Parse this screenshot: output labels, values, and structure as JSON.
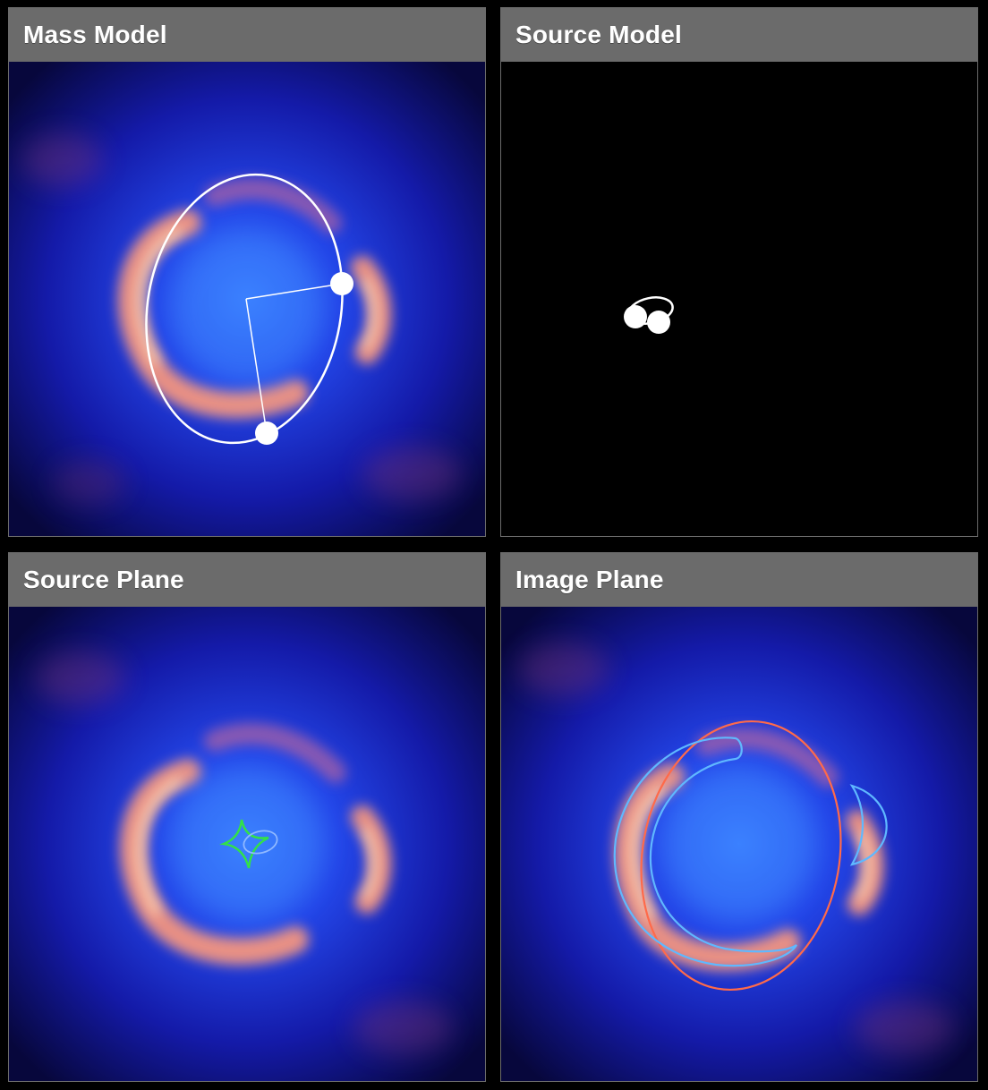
{
  "panels": {
    "mass_model": {
      "title": "Mass Model"
    },
    "source_model": {
      "title": "Source Model"
    },
    "source_plane": {
      "title": "Source Plane"
    },
    "image_plane": {
      "title": "Image Plane"
    }
  },
  "colors": {
    "header_bg": "#6b6b6b",
    "panel_border": "#6a6a6a",
    "background": "#000000",
    "sky_core": "#2f6dff",
    "sky_edge": "#06063a",
    "ring_glow": "#ff9a7a",
    "ring_highlight": "#ffe2c0",
    "mass_ellipse": "#ffffff",
    "caustic": "#33e04a",
    "source_curve": "#8fb8ff",
    "critical_curve": "#ff6a4a",
    "lensed_image": "#5fb8ff"
  }
}
